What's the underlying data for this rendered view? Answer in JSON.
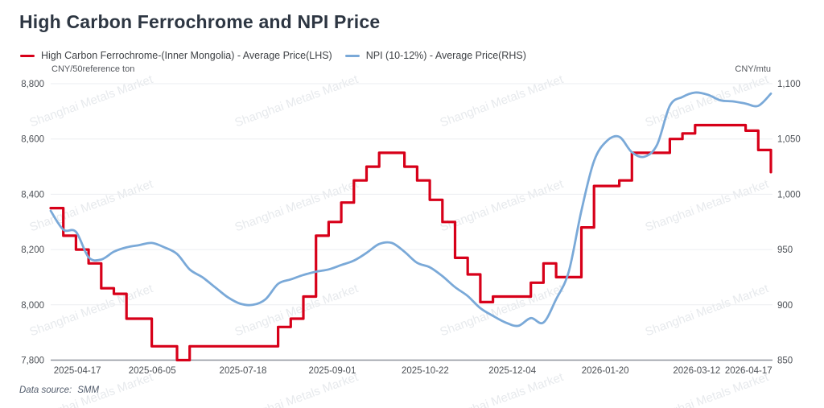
{
  "page": {
    "title": "High Carbon Ferrochrome and NPI Price"
  },
  "legend": [
    {
      "label": "High Carbon Ferrochrome-(Inner Mongolia) - Average Price(LHS)",
      "color": "#d70019"
    },
    {
      "label": "NPI (10-12%) - Average Price(RHS)",
      "color": "#7aa9d8"
    }
  ],
  "watermark": {
    "text": "Shanghai Metals Market"
  },
  "footer": {
    "label": "Data source:",
    "value": "SMM"
  },
  "chart_data": {
    "type": "line",
    "title": "High Carbon Ferrochrome and NPI Price",
    "grid": "horizontal-only",
    "legend_position": "top-left",
    "y_left_unit": "CNY/50reference ton",
    "y_right_unit": "CNY/mtu",
    "y_left_axis": {
      "min": 7800,
      "max": 8800,
      "step": 200
    },
    "y_right_axis": {
      "min": 850,
      "max": 1100,
      "step": 50
    },
    "y_left_ticks": [
      "7,800",
      "8,000",
      "8,200",
      "8,400",
      "8,600",
      "8,800"
    ],
    "y_right_ticks": [
      "850",
      "900",
      "950",
      "1,000",
      "1,050",
      "1,100"
    ],
    "x_ticks": [
      {
        "label": "2025-04-17",
        "pos": 0.037
      },
      {
        "label": "2025-06-05",
        "pos": 0.141
      },
      {
        "label": "2025-07-18",
        "pos": 0.267
      },
      {
        "label": "2025-09-01",
        "pos": 0.391
      },
      {
        "label": "2025-10-22",
        "pos": 0.52
      },
      {
        "label": "2025-12-04",
        "pos": 0.641
      },
      {
        "label": "2026-01-20",
        "pos": 0.77
      },
      {
        "label": "2026-03-12",
        "pos": 0.897
      },
      {
        "label": "2026-04-17",
        "pos": 0.969
      }
    ],
    "series": [
      {
        "id": "ferrochrome",
        "name": "High Carbon Ferrochrome-(Inner Mongolia) - Average Price(LHS)",
        "axis": "left",
        "color": "#d70019",
        "width": 3.2,
        "style": "step",
        "values": [
          8350,
          8250,
          8200,
          8150,
          8060,
          8040,
          7950,
          7950,
          7850,
          7850,
          7800,
          7850,
          7850,
          7850,
          7850,
          7850,
          7850,
          7850,
          7920,
          7950,
          8030,
          8250,
          8300,
          8370,
          8450,
          8500,
          8550,
          8550,
          8500,
          8450,
          8380,
          8300,
          8170,
          8110,
          8010,
          8030,
          8030,
          8030,
          8080,
          8150,
          8100,
          8100,
          8280,
          8430,
          8430,
          8450,
          8550,
          8550,
          8550,
          8600,
          8620,
          8650,
          8650,
          8650,
          8650,
          8630,
          8560,
          8480
        ]
      },
      {
        "id": "npi",
        "name": "NPI (10-12%) - Average Price(RHS)",
        "axis": "right",
        "color": "#7aa9d8",
        "width": 2.8,
        "style": "smooth",
        "values": [
          985,
          968,
          966,
          943,
          941,
          948,
          952,
          954,
          956,
          952,
          946,
          932,
          925,
          916,
          907,
          901,
          900,
          905,
          919,
          923,
          927,
          930,
          932,
          936,
          940,
          947,
          955,
          956,
          948,
          938,
          934,
          926,
          916,
          908,
          897,
          890,
          884,
          881,
          888,
          884,
          905,
          930,
          985,
          1030,
          1048,
          1052,
          1038,
          1034,
          1045,
          1080,
          1088,
          1092,
          1090,
          1085,
          1084,
          1082,
          1080,
          1091
        ]
      }
    ]
  }
}
